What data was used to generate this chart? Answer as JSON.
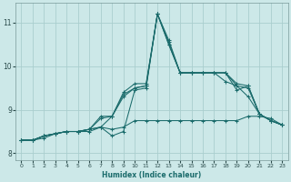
{
  "title": "",
  "xlabel": "Humidex (Indice chaleur)",
  "bg_color": "#cce8e8",
  "grid_color": "#aacece",
  "line_color": "#1a6b6b",
  "xlim": [
    -0.5,
    23.5
  ],
  "ylim": [
    7.85,
    11.45
  ],
  "yticks": [
    8,
    9,
    10,
    11
  ],
  "xticks": [
    0,
    1,
    2,
    3,
    4,
    5,
    6,
    7,
    8,
    9,
    10,
    11,
    12,
    13,
    14,
    15,
    16,
    17,
    18,
    19,
    20,
    21,
    22,
    23
  ],
  "series": [
    {
      "x": [
        0,
        1,
        2,
        3,
        4,
        5,
        6,
        7,
        8,
        9,
        10,
        11,
        12,
        13,
        14,
        15,
        16,
        17,
        18,
        19,
        20,
        21,
        22,
        23
      ],
      "y": [
        8.3,
        8.3,
        8.4,
        8.45,
        8.5,
        8.5,
        8.55,
        8.6,
        8.85,
        9.35,
        9.5,
        9.55,
        11.2,
        10.55,
        9.85,
        9.85,
        9.85,
        9.85,
        9.85,
        9.55,
        9.5,
        8.9,
        8.75,
        8.65
      ]
    },
    {
      "x": [
        0,
        1,
        2,
        3,
        4,
        5,
        6,
        7,
        8,
        9,
        10,
        11,
        12,
        13,
        14,
        15,
        16,
        17,
        18,
        19,
        20,
        21,
        22,
        23
      ],
      "y": [
        8.3,
        8.3,
        8.4,
        8.45,
        8.5,
        8.5,
        8.55,
        8.8,
        8.85,
        9.4,
        9.6,
        9.6,
        11.2,
        10.6,
        9.85,
        9.85,
        9.85,
        9.85,
        9.85,
        9.6,
        9.55,
        8.9,
        8.75,
        8.65
      ]
    },
    {
      "x": [
        0,
        1,
        2,
        3,
        4,
        5,
        6,
        7,
        8,
        9,
        10,
        11,
        12,
        13,
        14,
        15,
        16,
        17,
        18,
        19,
        20,
        21,
        22,
        23
      ],
      "y": [
        8.3,
        8.3,
        8.4,
        8.45,
        8.5,
        8.5,
        8.55,
        8.85,
        8.85,
        9.3,
        9.5,
        9.55,
        11.2,
        10.5,
        9.85,
        9.85,
        9.85,
        9.85,
        9.65,
        9.55,
        9.3,
        8.9,
        8.75,
        8.65
      ]
    },
    {
      "x": [
        0,
        1,
        2,
        3,
        4,
        5,
        6,
        7,
        8,
        9,
        10,
        11,
        12,
        13,
        14,
        15,
        16,
        17,
        18,
        19,
        20,
        21,
        22,
        23
      ],
      "y": [
        8.3,
        8.3,
        8.4,
        8.45,
        8.5,
        8.5,
        8.55,
        8.6,
        8.4,
        8.5,
        9.45,
        9.5,
        11.2,
        10.5,
        9.85,
        9.85,
        9.85,
        9.85,
        9.85,
        9.45,
        9.55,
        8.9,
        8.75,
        8.65
      ]
    },
    {
      "x": [
        0,
        1,
        2,
        3,
        4,
        5,
        6,
        7,
        8,
        9,
        10,
        11,
        12,
        13,
        14,
        15,
        16,
        17,
        18,
        19,
        20,
        21,
        22,
        23
      ],
      "y": [
        8.3,
        8.3,
        8.35,
        8.45,
        8.5,
        8.5,
        8.5,
        8.6,
        8.55,
        8.6,
        8.75,
        8.75,
        8.75,
        8.75,
        8.75,
        8.75,
        8.75,
        8.75,
        8.75,
        8.75,
        8.85,
        8.85,
        8.8,
        8.65
      ]
    }
  ]
}
